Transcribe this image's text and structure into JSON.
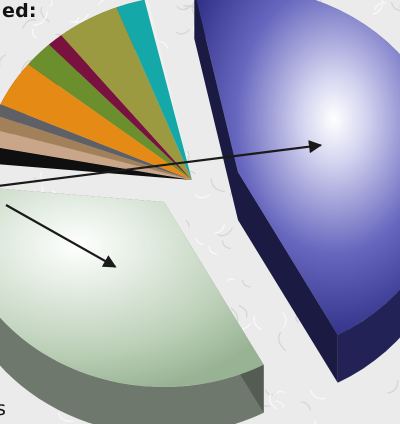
{
  "title_fragment": "ed:",
  "bottom_fragment": "s",
  "colors": {
    "background": "#ebebeb",
    "arrow": "#1a1a1a"
  },
  "chart_data": {
    "type": "pie",
    "style": "3d-exploded",
    "title": "",
    "slices": [
      {
        "value": 45.0,
        "color": "#3d3d9e",
        "exploded": true
      },
      {
        "value": 34.0,
        "color": "#c9dac6",
        "exploded": true
      },
      {
        "value": 1.5,
        "color": "#0f0f0f",
        "exploded": false
      },
      {
        "value": 1.5,
        "color": "#c9a589",
        "exploded": false
      },
      {
        "value": 1.2,
        "color": "#a2815a",
        "exploded": false
      },
      {
        "value": 1.0,
        "color": "#5f5f66",
        "exploded": false
      },
      {
        "value": 4.0,
        "color": "#e68a16",
        "exploded": false
      },
      {
        "value": 2.3,
        "color": "#6a8f2c",
        "exploded": false
      },
      {
        "value": 1.2,
        "color": "#7a1240",
        "exploded": false
      },
      {
        "value": 4.8,
        "color": "#9c9a40",
        "exploded": false
      },
      {
        "value": 2.2,
        "color": "#14a8a8",
        "exploded": false
      },
      {
        "value": 0.3,
        "color": "#f0f0f0",
        "exploded": false
      }
    ],
    "annotations": [
      {
        "type": "arrow",
        "points_to_slice": 0
      },
      {
        "type": "arrow",
        "points_to_slice": 1
      }
    ]
  }
}
